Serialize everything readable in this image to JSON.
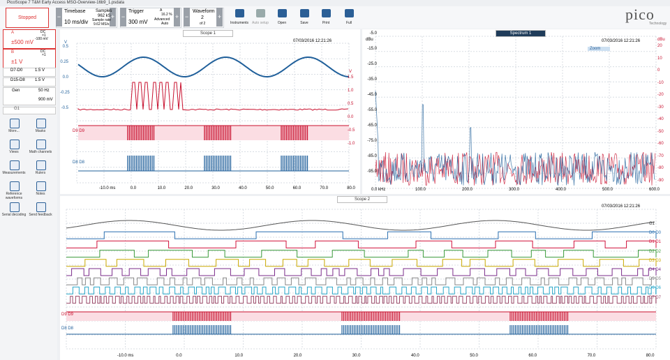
{
  "title_bar": "PicoScope 7 T&M Early Access MSO-Overview-16b9_1.psdata",
  "toolbar": {
    "status": "Stopped",
    "timebase_label": "Timebase",
    "timebase": "10 ms/div",
    "samples_label": "Samples",
    "samples": "962 kS",
    "sample_rate_label": "Sample rate",
    "sample_rate": "9.62 MS/s",
    "trigger_label": "Trigger",
    "trigger_level": "300 mV",
    "trigger_channel": "A",
    "trigger_position": "16.2 %",
    "trigger_advanced": "Advanced",
    "trigger_mode": "Auto",
    "waveform_label": "Waveform",
    "waveform_index": "2",
    "waveform_count": "of 2",
    "buttons": [
      "Instruments",
      "Auto setup",
      "Open",
      "Save",
      "Print",
      "Full"
    ],
    "logo": "pico",
    "logo_sub": "Technology"
  },
  "channels": [
    {
      "name": "A",
      "range": "±500 mV",
      "coupling": "DC",
      "probe": "×1",
      "offset": "-100 mV"
    },
    {
      "name": "B",
      "range": "±1 V",
      "coupling": "DC",
      "probe": "×1"
    }
  ],
  "digital": [
    {
      "name": "D7-D0",
      "threshold": "1.5 V"
    },
    {
      "name": "D15-D8",
      "threshold": "1.5 V"
    }
  ],
  "generator": {
    "name": "Gen",
    "frequency": "50 Hz",
    "amplitude": "900 mV",
    "channel": "G1"
  },
  "tools": [
    "More...",
    "Masks",
    "Views",
    "Math channels",
    "Measurements",
    "Rulers",
    "Reference waveforms",
    "Notes",
    "Serial decoding",
    "Send feedback"
  ],
  "scope1": {
    "title": "Scope 1",
    "timestamp": "07/03/2016 12:21:26",
    "y_unit": "V",
    "y_ticks": [
      "0.5",
      "0.25",
      "0.0",
      "-0.25",
      "-0.5"
    ],
    "y2_unit": "V",
    "y2_ticks": [
      "1.5",
      "1.0",
      "0.5",
      "0.0",
      "-0.5",
      "-1.0"
    ],
    "digital_labels": [
      "D9  D9",
      "D8  D8"
    ],
    "x_ticks": [
      "-10.0 ms",
      "0.0",
      "10.0",
      "20.0",
      "30.0",
      "40.0",
      "50.0",
      "60.0",
      "70.0",
      "80.0"
    ]
  },
  "spectrum1": {
    "title": "Spectrum 1",
    "timestamp": "07/03/2016 12:21:26",
    "zoom": "Zoom",
    "y_unit": "dBu",
    "y_ticks": [
      "-5.0",
      "-15.0",
      "-25.0",
      "-35.0",
      "-45.0",
      "-55.0",
      "-65.0",
      "-75.0",
      "-85.0",
      "-95.0"
    ],
    "y2_unit": "dBu",
    "y2_ticks": [
      "20",
      "10",
      "0",
      "-10",
      "-20",
      "-30",
      "-40",
      "-50",
      "-60",
      "-70",
      "-80",
      "-90"
    ],
    "x_ticks": [
      "0.0 kHz",
      "100.0",
      "200.0",
      "300.0",
      "400.0",
      "500.0",
      "600.0"
    ]
  },
  "scope2": {
    "title": "Scope 2",
    "timestamp": "07/03/2016 12:21:26",
    "channel_labels": [
      "G1",
      "D0  D0",
      "D1  D1",
      "D2  D2",
      "D3  D3",
      "D4  D4",
      "D5  D5",
      "D6  D6",
      "D7  D7"
    ],
    "digital_labels": [
      "D9  D9",
      "D8  D8"
    ],
    "x_ticks": [
      "-10.0 ms",
      "0.0",
      "10.0",
      "20.0",
      "30.0",
      "40.0",
      "50.0",
      "60.0",
      "70.0",
      "80.0"
    ]
  }
}
